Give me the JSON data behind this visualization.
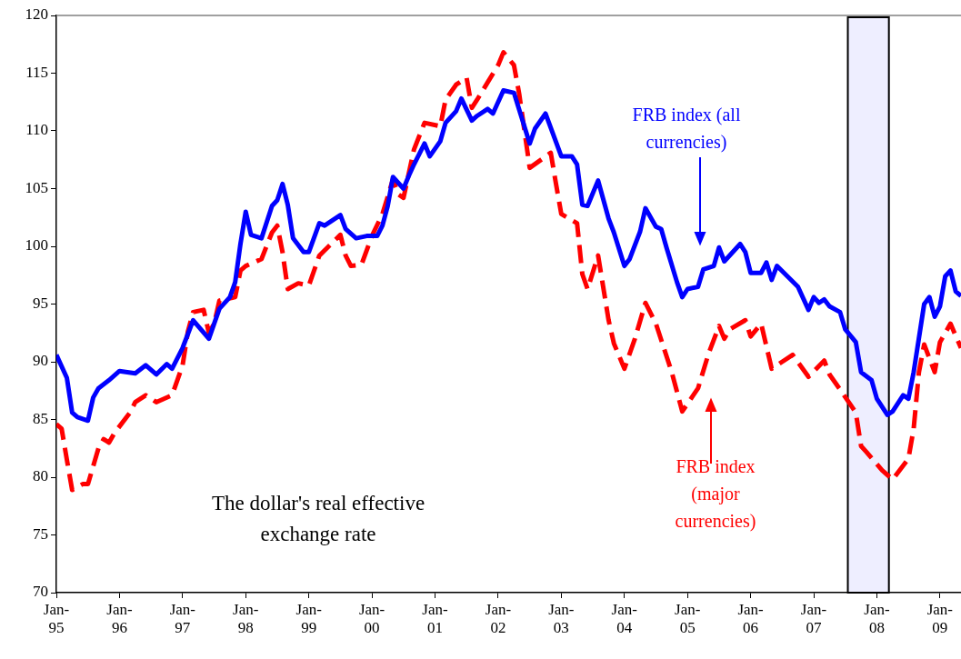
{
  "chart_data": {
    "type": "line",
    "xlim": [
      "1995-01",
      "2009-05"
    ],
    "xticks": [
      {
        "value": "1995-01",
        "label": "Jan-95"
      },
      {
        "value": "1996-01",
        "label": "Jan-96"
      },
      {
        "value": "1997-01",
        "label": "Jan-97"
      },
      {
        "value": "1998-01",
        "label": "Jan-98"
      },
      {
        "value": "1999-01",
        "label": "Jan-99"
      },
      {
        "value": "2000-01",
        "label": "Jan-00"
      },
      {
        "value": "2001-01",
        "label": "Jan-01"
      },
      {
        "value": "2002-01",
        "label": "Jan-02"
      },
      {
        "value": "2003-01",
        "label": "Jan-03"
      },
      {
        "value": "2004-01",
        "label": "Jan-04"
      },
      {
        "value": "2005-01",
        "label": "Jan-05"
      },
      {
        "value": "2006-01",
        "label": "Jan-06"
      },
      {
        "value": "2007-01",
        "label": "Jan-07"
      },
      {
        "value": "2008-01",
        "label": "Jan-08"
      },
      {
        "value": "2009-01",
        "label": "Jan-09"
      }
    ],
    "ylim": [
      70,
      120
    ],
    "yticks": [
      70,
      75,
      80,
      85,
      90,
      95,
      100,
      105,
      110,
      115,
      120
    ],
    "grid": false,
    "legend": false,
    "marker": "none",
    "bands": [
      {
        "axis": "x",
        "from": "2007-07-16",
        "to": "2008-03-10",
        "color": "#eeeeff"
      }
    ],
    "annotations": [
      "The dollar's real effective exchange rate",
      "FRB index (all currencies)",
      "FRB index (major currencies)"
    ],
    "series": [
      {
        "color": "#0000ff",
        "line_style": "solid",
        "x": [
          "1995-01",
          "1995-03",
          "1995-04",
          "1995-05",
          "1995-07",
          "1995-08",
          "1995-09",
          "1995-11",
          "1996-01",
          "1996-04",
          "1996-06",
          "1996-08",
          "1996-10",
          "1996-11",
          "1997-01",
          "1997-03",
          "1997-06",
          "1997-08",
          "1997-10",
          "1997-11",
          "1997-12",
          "1998-01",
          "1998-02",
          "1998-04",
          "1998-06",
          "1998-07",
          "1998-08",
          "1998-09",
          "1998-10",
          "1998-12",
          "1999-01",
          "1999-03",
          "1999-04",
          "1999-07",
          "1999-08",
          "1999-10",
          "1999-12",
          "2000-02",
          "2000-03",
          "2000-04",
          "2000-05",
          "2000-07",
          "2000-08",
          "2000-09",
          "2000-11",
          "2000-12",
          "2001-02",
          "2001-03",
          "2001-05",
          "2001-06",
          "2001-08",
          "2001-09",
          "2001-11",
          "2001-12",
          "2002-02",
          "2002-04",
          "2002-07",
          "2002-08",
          "2002-10",
          "2003-01",
          "2003-03",
          "2003-04",
          "2003-05",
          "2003-06",
          "2003-08",
          "2003-10",
          "2003-11",
          "2004-01",
          "2004-02",
          "2004-04",
          "2004-05",
          "2004-07",
          "2004-08",
          "2004-09",
          "2004-11",
          "2004-12",
          "2005-01",
          "2005-03",
          "2005-04",
          "2005-06",
          "2005-07",
          "2005-08",
          "2005-11",
          "2005-12",
          "2006-01",
          "2006-03",
          "2006-04",
          "2006-05",
          "2006-06",
          "2006-08",
          "2006-10",
          "2006-12",
          "2007-01",
          "2007-02",
          "2007-03",
          "2007-04",
          "2007-06",
          "2007-07",
          "2007-09",
          "2007-10",
          "2007-12",
          "2008-01",
          "2008-03",
          "2008-04",
          "2008-06",
          "2008-07",
          "2008-08",
          "2008-10",
          "2008-11",
          "2008-12",
          "2009-01",
          "2009-02",
          "2009-03",
          "2009-04",
          "2009-05"
        ],
        "values": [
          90.6,
          88.6,
          85.6,
          85.2,
          84.9,
          86.9,
          87.7,
          88.4,
          89.2,
          89.0,
          89.7,
          88.9,
          89.8,
          89.4,
          91.2,
          93.6,
          92.0,
          94.6,
          95.6,
          96.9,
          100.2,
          103.0,
          101.0,
          100.7,
          103.5,
          104.0,
          105.4,
          103.6,
          100.7,
          99.5,
          99.5,
          102.0,
          101.8,
          102.7,
          101.5,
          100.7,
          100.9,
          100.9,
          101.8,
          103.5,
          106.0,
          105.0,
          106.1,
          107.1,
          108.9,
          107.8,
          109.1,
          110.7,
          111.7,
          112.8,
          110.9,
          111.3,
          111.9,
          111.5,
          113.5,
          113.3,
          108.9,
          110.2,
          111.5,
          107.8,
          107.8,
          107.1,
          103.6,
          103.5,
          105.7,
          102.4,
          101.2,
          98.3,
          98.9,
          101.3,
          103.3,
          101.7,
          101.5,
          99.9,
          96.9,
          95.6,
          96.3,
          96.5,
          98.0,
          98.3,
          99.9,
          98.7,
          100.2,
          99.5,
          97.7,
          97.7,
          98.6,
          97.1,
          98.3,
          97.4,
          96.5,
          94.5,
          95.6,
          95.1,
          95.4,
          94.8,
          94.3,
          92.8,
          91.7,
          89.1,
          88.4,
          86.8,
          85.4,
          85.7,
          87.1,
          86.8,
          89.1,
          95.0,
          95.6,
          93.9,
          94.8,
          97.4,
          97.9,
          96.1,
          95.7
        ]
      },
      {
        "color": "#ff0000",
        "line_style": "dashed",
        "x": [
          "1995-01",
          "1995-02",
          "1995-03",
          "1995-04",
          "1995-06",
          "1995-07",
          "1995-09",
          "1995-10",
          "1995-11",
          "1995-12",
          "1996-03",
          "1996-04",
          "1996-06",
          "1996-08",
          "1996-11",
          "1997-01",
          "1997-02",
          "1997-03",
          "1997-05",
          "1997-06",
          "1997-07",
          "1997-08",
          "1997-11",
          "1997-12",
          "1998-01",
          "1998-04",
          "1998-06",
          "1998-07",
          "1998-08",
          "1998-09",
          "1998-11",
          "1999-01",
          "1999-03",
          "1999-07",
          "1999-08",
          "1999-09",
          "1999-11",
          "2000-01",
          "2000-03",
          "2000-05",
          "2000-06",
          "2000-07",
          "2000-09",
          "2000-11",
          "2001-02",
          "2001-03",
          "2001-05",
          "2001-07",
          "2001-08",
          "2001-09",
          "2001-11",
          "2002-01",
          "2002-02",
          "2002-04",
          "2002-05",
          "2002-07",
          "2002-11",
          "2002-12",
          "2003-01",
          "2003-04",
          "2003-05",
          "2003-06",
          "2003-08",
          "2003-10",
          "2003-11",
          "2004-01",
          "2004-03",
          "2004-05",
          "2004-07",
          "2004-10",
          "2004-12",
          "2005-03",
          "2005-05",
          "2005-07",
          "2005-08",
          "2005-09",
          "2005-12",
          "2006-01",
          "2006-03",
          "2006-05",
          "2006-09",
          "2006-12",
          "2007-03",
          "2007-04",
          "2007-06",
          "2007-09",
          "2007-10",
          "2007-11",
          "2008-02",
          "2008-04",
          "2008-07",
          "2008-08",
          "2008-09",
          "2008-10",
          "2008-12",
          "2009-01",
          "2009-03",
          "2009-05"
        ],
        "values": [
          84.6,
          84.2,
          81.5,
          78.9,
          79.4,
          79.4,
          82.5,
          83.3,
          83.0,
          83.8,
          85.6,
          86.5,
          87.1,
          86.5,
          87.1,
          89.7,
          92.6,
          94.3,
          94.5,
          92.5,
          93.3,
          95.3,
          95.6,
          97.9,
          98.3,
          98.9,
          101.2,
          101.8,
          99.5,
          96.3,
          96.8,
          96.6,
          99.2,
          101.0,
          99.2,
          98.3,
          98.4,
          100.9,
          102.8,
          105.8,
          104.5,
          104.2,
          108.4,
          110.7,
          110.4,
          112.7,
          114.0,
          114.6,
          112.0,
          112.7,
          114.2,
          115.7,
          116.8,
          115.7,
          113.2,
          106.8,
          108.1,
          105.4,
          102.8,
          102.0,
          97.6,
          96.3,
          99.2,
          93.6,
          91.6,
          89.4,
          92.0,
          95.1,
          93.3,
          89.1,
          85.7,
          87.7,
          90.7,
          93.1,
          92.0,
          92.8,
          93.6,
          92.2,
          93.3,
          89.4,
          90.6,
          88.7,
          90.1,
          88.9,
          87.6,
          85.6,
          82.7,
          82.2,
          80.6,
          79.8,
          81.6,
          84.2,
          89.1,
          91.5,
          89.1,
          91.7,
          93.3,
          91.2
        ]
      }
    ]
  }
}
